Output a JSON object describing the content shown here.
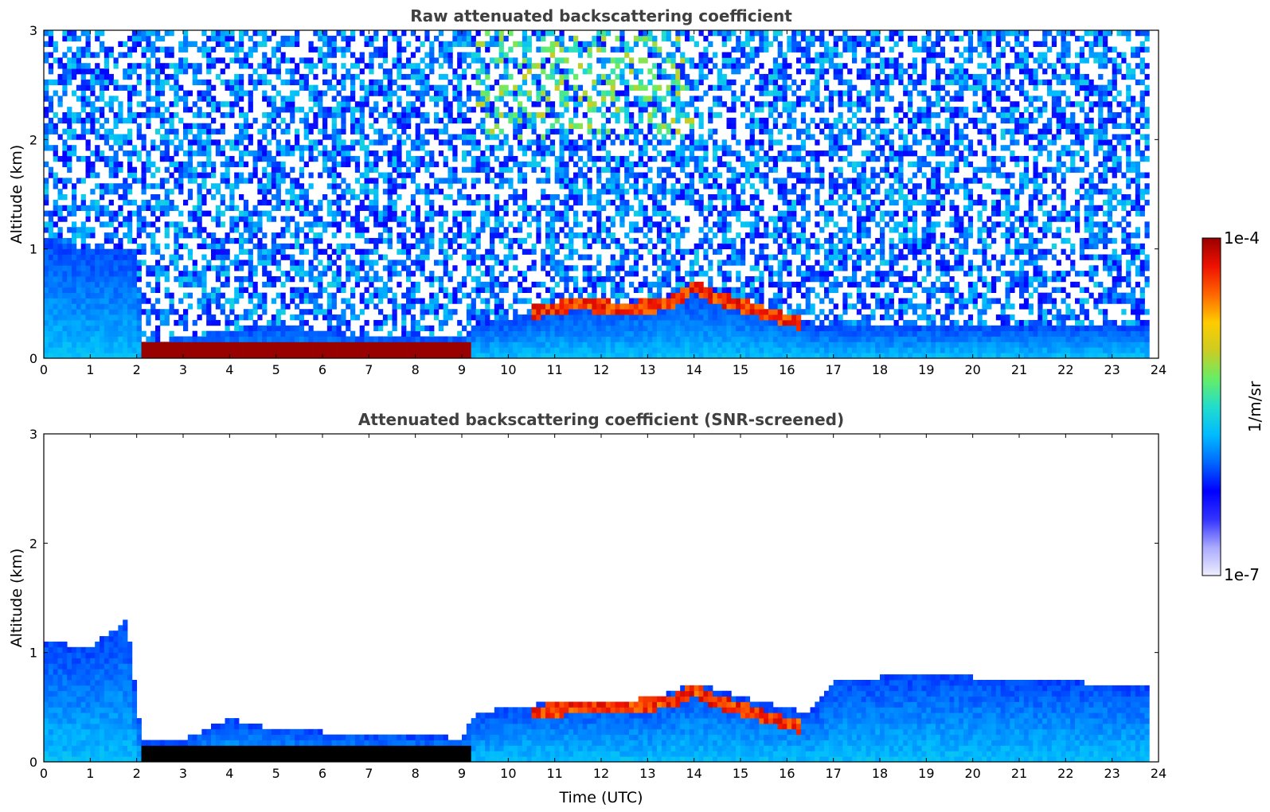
{
  "chart_data": [
    {
      "type": "heatmap",
      "title": "Raw attenuated backscattering coefficient",
      "ylabel": "Altitude (km)",
      "xlabel": "",
      "xlim": [
        0,
        24
      ],
      "ylim": [
        0,
        3
      ],
      "x_ticks": [
        "0",
        "1",
        "2",
        "3",
        "4",
        "5",
        "6",
        "7",
        "8",
        "9",
        "10",
        "11",
        "12",
        "13",
        "14",
        "15",
        "16",
        "17",
        "18",
        "19",
        "20",
        "21",
        "22",
        "23",
        "24"
      ],
      "y_ticks": [
        "0",
        "1",
        "2",
        "3"
      ],
      "data_end_time": 23.8,
      "layers": [
        {
          "name": "boundary layer aerosol",
          "x": [
            0,
            1,
            2,
            2.1,
            3,
            5,
            7,
            9,
            9.3,
            11,
            13,
            14,
            15,
            16,
            16.5,
            17,
            19,
            21,
            23.8
          ],
          "top_km": [
            1.1,
            1.0,
            1.0,
            0.12,
            0.2,
            0.3,
            0.2,
            0.2,
            0.3,
            0.45,
            0.5,
            0.6,
            0.5,
            0.4,
            0.3,
            0.3,
            0.3,
            0.3,
            0.3
          ]
        },
        {
          "name": "strong near-surface layer",
          "x": [
            2.1,
            9.2
          ],
          "altitude_km": [
            0.05,
            0.12
          ],
          "relative_intensity": 1.0
        },
        {
          "name": "cloud / layer top",
          "x": [
            10.5,
            11.5,
            12.5,
            13.5,
            14,
            14.5,
            15.5,
            16.3
          ],
          "altitude_km": [
            0.42,
            0.5,
            0.45,
            0.5,
            0.65,
            0.55,
            0.42,
            0.32
          ],
          "relative_intensity": 0.95
        }
      ],
      "colorbar": {
        "min_label": "1e-7",
        "max_label": "1e-4",
        "unit": "1/m/sr",
        "scale": "log"
      }
    },
    {
      "type": "heatmap",
      "title": "Attenuated backscattering coefficient (SNR-screened)",
      "ylabel": "Altitude (km)",
      "xlabel": "Time (UTC)",
      "xlim": [
        0,
        24
      ],
      "ylim": [
        0,
        3
      ],
      "x_ticks": [
        "0",
        "1",
        "2",
        "3",
        "4",
        "5",
        "6",
        "7",
        "8",
        "9",
        "10",
        "11",
        "12",
        "13",
        "14",
        "15",
        "16",
        "17",
        "18",
        "19",
        "20",
        "21",
        "22",
        "23",
        "24"
      ],
      "y_ticks": [
        "0",
        "1",
        "2",
        "3"
      ],
      "data_end_time": 23.8,
      "layers": [
        {
          "name": "boundary layer aerosol",
          "x": [
            0,
            1,
            1.8,
            2.1,
            3,
            4,
            5,
            7,
            9,
            9.3,
            11,
            13,
            14,
            15,
            16,
            16.5,
            17,
            19,
            21,
            23.8
          ],
          "top_km": [
            1.1,
            1.05,
            1.3,
            0.2,
            0.2,
            0.4,
            0.3,
            0.25,
            0.22,
            0.45,
            0.55,
            0.55,
            0.72,
            0.6,
            0.5,
            0.45,
            0.75,
            0.8,
            0.75,
            0.7
          ]
        },
        {
          "name": "strong near-surface layer",
          "x": [
            2.1,
            9.2
          ],
          "altitude_km": [
            0.05,
            0.12
          ],
          "relative_intensity": 1.0
        },
        {
          "name": "cloud / layer top",
          "x": [
            10.5,
            11.5,
            12.5,
            13.5,
            14,
            14.5,
            15.5,
            16.3
          ],
          "altitude_km": [
            0.45,
            0.5,
            0.5,
            0.55,
            0.65,
            0.55,
            0.42,
            0.32
          ],
          "relative_intensity": 0.95
        }
      ],
      "colorbar": {
        "min_label": "1e-7",
        "max_label": "1e-4",
        "unit": "1/m/sr",
        "scale": "log"
      }
    }
  ],
  "colorbar": {
    "max_label": "1e-4",
    "min_label": "1e-7",
    "unit_label": "1/m/sr",
    "stops": [
      "#eeeeff",
      "#aaaaff",
      "#3333ff",
      "#0000ff",
      "#0066ff",
      "#00bbff",
      "#22ddcc",
      "#66ee66",
      "#cccc22",
      "#ffcc00",
      "#ff6600",
      "#ee1100",
      "#990000"
    ]
  }
}
